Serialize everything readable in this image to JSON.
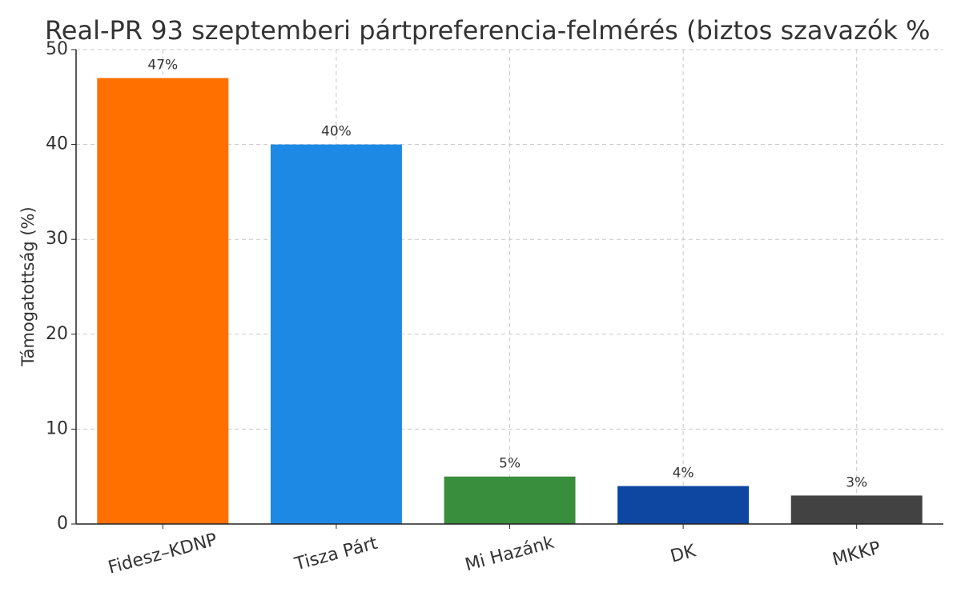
{
  "chart_data": {
    "type": "bar",
    "title": "Real-PR 93 szeptemberi pártpreferencia-felmérés (biztos szavazók %",
    "ylabel": "Támogatottság (%)",
    "categories": [
      "Fidesz–KDNP",
      "Tisza Párt",
      "Mi Hazánk",
      "DK",
      "MKKP"
    ],
    "values": [
      47,
      40,
      5,
      4,
      3
    ],
    "value_labels": [
      "47%",
      "40%",
      "5%",
      "4%",
      "3%"
    ],
    "colors": [
      "#ff7000",
      "#1e88e5",
      "#388e3c",
      "#0d47a1",
      "#424242"
    ],
    "ylim": [
      0,
      50
    ],
    "yticks": [
      0,
      10,
      20,
      30,
      40,
      50
    ],
    "grid": true
  }
}
